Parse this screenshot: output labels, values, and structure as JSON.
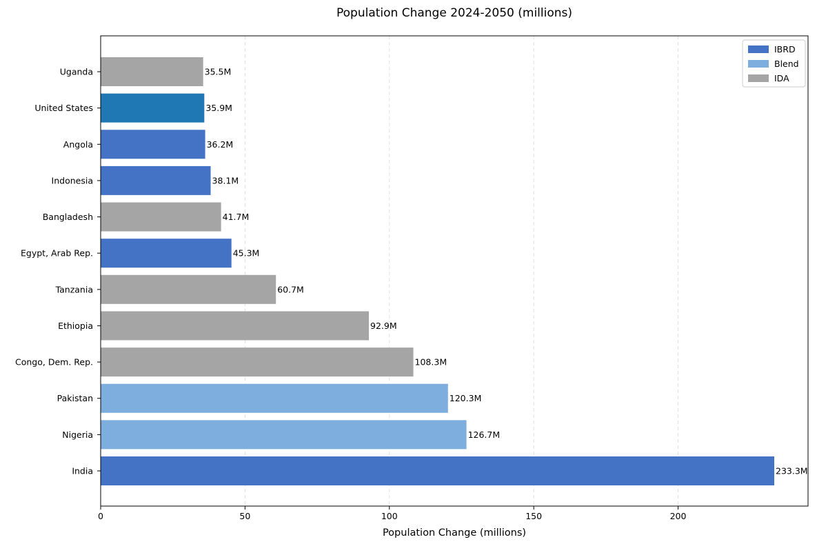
{
  "chart_data": {
    "type": "bar",
    "orientation": "horizontal",
    "title": "Population Change 2024-2050 (millions)",
    "xlabel": "Population Change (millions)",
    "ylabel": "",
    "xlim": [
      0,
      245
    ],
    "xticks": [
      0,
      50,
      100,
      150,
      200
    ],
    "grid": "x-dashed",
    "legend_position": "top-right",
    "legend": [
      {
        "label": "IBRD",
        "color": "#4472C4"
      },
      {
        "label": "Blend",
        "color": "#7DAEDE"
      },
      {
        "label": "IDA",
        "color": "#A5A5A5"
      }
    ],
    "bars": [
      {
        "category": "India",
        "value": 233.3,
        "label": "233.3M",
        "group": "IBRD",
        "color": "#4472C4"
      },
      {
        "category": "Nigeria",
        "value": 126.7,
        "label": "126.7M",
        "group": "Blend",
        "color": "#7DAEDE"
      },
      {
        "category": "Pakistan",
        "value": 120.3,
        "label": "120.3M",
        "group": "Blend",
        "color": "#7DAEDE"
      },
      {
        "category": "Congo, Dem. Rep.",
        "value": 108.3,
        "label": "108.3M",
        "group": "IDA",
        "color": "#A5A5A5"
      },
      {
        "category": "Ethiopia",
        "value": 92.9,
        "label": "92.9M",
        "group": "IDA",
        "color": "#A5A5A5"
      },
      {
        "category": "Tanzania",
        "value": 60.7,
        "label": "60.7M",
        "group": "IDA",
        "color": "#A5A5A5"
      },
      {
        "category": "Egypt, Arab Rep.",
        "value": 45.3,
        "label": "45.3M",
        "group": "IBRD",
        "color": "#4472C4"
      },
      {
        "category": "Bangladesh",
        "value": 41.7,
        "label": "41.7M",
        "group": "IDA",
        "color": "#A5A5A5"
      },
      {
        "category": "Indonesia",
        "value": 38.1,
        "label": "38.1M",
        "group": "IBRD",
        "color": "#4472C4"
      },
      {
        "category": "Angola",
        "value": 36.2,
        "label": "36.2M",
        "group": "IBRD",
        "color": "#4472C4"
      },
      {
        "category": "United States",
        "value": 35.9,
        "label": "35.9M",
        "group": "",
        "color": "#1F77B4"
      },
      {
        "category": "Uganda",
        "value": 35.5,
        "label": "35.5M",
        "group": "IDA",
        "color": "#A5A5A5"
      }
    ]
  }
}
